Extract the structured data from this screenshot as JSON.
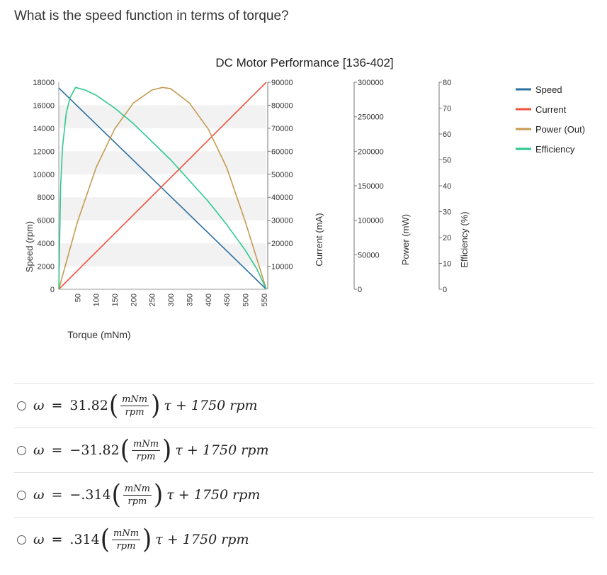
{
  "question": "What is the speed function in terms of torque?",
  "chart_data": {
    "type": "line",
    "title": "DC Motor Performance [136-402]",
    "xlabel": "Torque (mNm)",
    "x_ticks": [
      "50",
      "100",
      "150",
      "200",
      "250",
      "300",
      "350",
      "400",
      "450",
      "500",
      "550"
    ],
    "xlim": [
      0,
      556
    ],
    "axes": [
      {
        "label": "Speed (rpm)",
        "ticks": [
          "0",
          "2000",
          "4000",
          "6000",
          "8000",
          "10000",
          "12000",
          "14000",
          "16000",
          "18000"
        ],
        "ylim": [
          0,
          18000
        ]
      },
      {
        "label": "",
        "ticks": [
          "10000",
          "20000",
          "30000",
          "40000",
          "50000",
          "60000",
          "70000",
          "80000",
          "90000"
        ],
        "ylim": [
          0,
          90000
        ]
      },
      {
        "label": "Current (mA)",
        "ticks": [
          "0",
          "50000",
          "100000",
          "150000",
          "200000",
          "250000",
          "300000"
        ],
        "ylim": [
          0,
          300000
        ]
      },
      {
        "label": "Power (mW)",
        "ticks": [
          "0",
          "10",
          "20",
          "30",
          "40",
          "50",
          "60",
          "70",
          "80"
        ],
        "ylim": [
          0,
          80
        ]
      },
      {
        "label": "Efficiency (%)",
        "ticks": [],
        "ylim": [
          0,
          80
        ]
      }
    ],
    "legend_position": "right",
    "grid": "horizontal bands",
    "series": [
      {
        "name": "Speed",
        "color": "#2e6fa0",
        "axis": 0,
        "x": [
          0,
          556
        ],
        "y": [
          17500,
          0
        ]
      },
      {
        "name": "Current",
        "color": "#f0513c",
        "axis": 1,
        "x": [
          0,
          556
        ],
        "y": [
          0,
          90000
        ]
      },
      {
        "name": "Power (Out)",
        "color": "#c49a50",
        "axis": 3,
        "x": [
          0,
          50,
          100,
          150,
          200,
          250,
          278,
          300,
          350,
          400,
          450,
          500,
          556
        ],
        "y": [
          0,
          26,
          47,
          62,
          72,
          77,
          78,
          77.5,
          72,
          62,
          47,
          26,
          0
        ]
      },
      {
        "name": "Efficiency",
        "color": "#2ec98e",
        "axis": 3,
        "x": [
          0,
          5,
          10,
          20,
          30,
          45,
          70,
          100,
          150,
          200,
          300,
          400,
          450,
          500,
          530,
          556
        ],
        "y": [
          0,
          40,
          55,
          68,
          74,
          78,
          77,
          75,
          70,
          64,
          50,
          34,
          25,
          15,
          8,
          0
        ]
      }
    ]
  },
  "options": [
    {
      "sign": "",
      "coef": "31.82",
      "unit_num": "mNm",
      "unit_den": "rpm",
      "rest": "τ + 1750 rpm"
    },
    {
      "sign": "−",
      "coef": "31.82",
      "unit_num": "mNm",
      "unit_den": "rpm",
      "rest": "τ + 1750 rpm"
    },
    {
      "sign": "−",
      "coef": ".314",
      "unit_num": "mNm",
      "unit_den": "rpm",
      "rest": "τ + 1750 rpm"
    },
    {
      "sign": "",
      "coef": ".314",
      "unit_num": "mNm",
      "unit_den": "rpm",
      "rest": "τ + 1750 rpm"
    }
  ],
  "omega_symbol": "ω",
  "equals": "="
}
